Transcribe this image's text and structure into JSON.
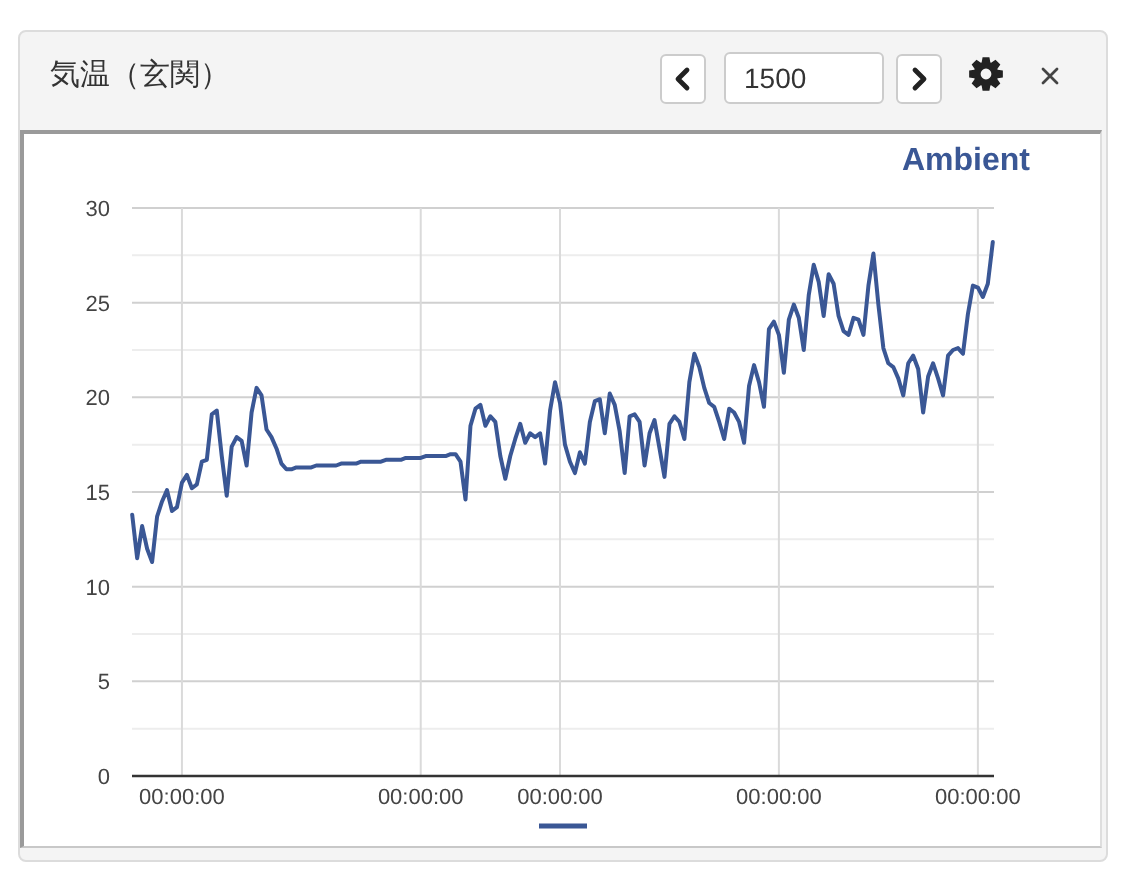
{
  "chart_data": {
    "type": "line",
    "title": "気温（玄関）",
    "subtitle": "Ambient",
    "annotations": [
      "1500"
    ],
    "categories": [
      null,
      null,
      null,
      null,
      null,
      null,
      null,
      null,
      null,
      null,
      "00:00:00",
      null,
      null,
      null,
      null,
      null,
      null,
      null,
      null,
      null,
      null,
      null,
      null,
      null,
      null,
      null,
      null,
      null,
      null,
      null,
      null,
      null,
      null,
      null,
      null,
      null,
      null,
      null,
      null,
      null,
      null,
      null,
      null,
      null,
      null,
      null,
      null,
      null,
      null,
      null,
      null,
      null,
      null,
      null,
      null,
      null,
      null,
      null,
      "00:00:00",
      null,
      null,
      null,
      null,
      null,
      null,
      null,
      null,
      null,
      null,
      null,
      null,
      null,
      null,
      null,
      null,
      null,
      null,
      null,
      null,
      null,
      null,
      null,
      null,
      null,
      null,
      null,
      "00:00:00",
      null,
      null,
      null,
      null,
      null,
      null,
      null,
      null,
      null,
      null,
      null,
      null,
      null,
      null,
      null,
      null,
      null,
      null,
      null,
      null,
      null,
      null,
      null,
      null,
      null,
      null,
      null,
      null,
      null,
      null,
      null,
      null,
      null,
      null,
      null,
      null,
      null,
      null,
      null,
      null,
      null,
      null,
      null,
      "00:00:00",
      null,
      null,
      null,
      null,
      null,
      null,
      null,
      null,
      null,
      null,
      null,
      null,
      null,
      null,
      null,
      null,
      null,
      null,
      null,
      null,
      null,
      null,
      null,
      null,
      null,
      null,
      null,
      null,
      null,
      null,
      null,
      null,
      null,
      null,
      null,
      null,
      null,
      null,
      null,
      "00:00:00",
      null,
      null,
      null
    ],
    "series": [
      {
        "color": "#3a5795",
        "values": [
          13.8,
          11.5,
          13.2,
          12.0,
          11.3,
          13.7,
          14.5,
          15.1,
          14.0,
          14.2,
          15.5,
          15.9,
          15.2,
          15.4,
          16.6,
          16.7,
          19.1,
          19.3,
          16.9,
          14.8,
          17.4,
          17.9,
          17.7,
          16.4,
          19.2,
          20.5,
          20.1,
          18.3,
          17.9,
          17.3,
          16.5,
          16.2,
          16.2,
          16.3,
          16.3,
          16.3,
          16.3,
          16.4,
          16.4,
          16.4,
          16.4,
          16.4,
          16.5,
          16.5,
          16.5,
          16.5,
          16.6,
          16.6,
          16.6,
          16.6,
          16.6,
          16.7,
          16.7,
          16.7,
          16.7,
          16.8,
          16.8,
          16.8,
          16.8,
          16.9,
          16.9,
          16.9,
          16.9,
          16.9,
          17.0,
          17.0,
          16.6,
          14.6,
          18.5,
          19.4,
          19.6,
          18.5,
          19.0,
          18.7,
          16.9,
          15.7,
          16.9,
          17.8,
          18.6,
          17.6,
          18.1,
          17.9,
          18.1,
          16.5,
          19.3,
          20.8,
          19.7,
          17.5,
          16.6,
          16.0,
          17.1,
          16.5,
          18.7,
          19.8,
          19.9,
          18.1,
          20.2,
          19.6,
          18.2,
          16.0,
          19.0,
          19.1,
          18.7,
          16.4,
          18.1,
          18.8,
          17.3,
          15.8,
          18.6,
          19.0,
          18.7,
          17.8,
          20.8,
          22.3,
          21.6,
          20.5,
          19.7,
          19.5,
          18.7,
          17.8,
          19.4,
          19.2,
          18.7,
          17.6,
          20.6,
          21.7,
          20.8,
          19.5,
          23.6,
          24.0,
          23.3,
          21.3,
          24.1,
          24.9,
          24.2,
          22.5,
          25.4,
          27.0,
          26.1,
          24.3,
          26.5,
          26.0,
          24.3,
          23.5,
          23.3,
          24.2,
          24.1,
          23.3,
          25.9,
          27.6,
          24.9,
          22.6,
          21.8,
          21.6,
          21.0,
          20.1,
          21.8,
          22.2,
          21.5,
          19.2,
          21.1,
          21.8,
          21.0,
          20.1,
          22.2,
          22.5,
          22.6,
          22.3,
          24.4,
          25.9,
          25.8,
          25.3,
          26.0,
          28.2
        ]
      }
    ],
    "ylim": [
      0,
      30
    ],
    "yticks": [
      0,
      {
        "value": 2.5,
        "label": null
      },
      5,
      {
        "value": 7.5,
        "label": null
      },
      10,
      {
        "value": 12.5,
        "label": null
      },
      15,
      {
        "value": 17.5,
        "label": null
      },
      20,
      {
        "value": 22.5,
        "label": null
      },
      25,
      {
        "value": 27.5,
        "label": null
      },
      30
    ],
    "grid": true,
    "line_style": "solid"
  }
}
